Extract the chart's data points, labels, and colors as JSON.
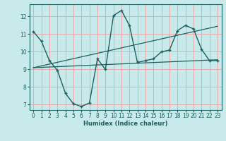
{
  "bg_color": "#c8eaea",
  "grid_color": "#e8a0a0",
  "line_color": "#1a6060",
  "xlabel": "Humidex (Indice chaleur)",
  "xlim": [
    -0.5,
    23.5
  ],
  "ylim": [
    6.7,
    12.7
  ],
  "yticks": [
    7,
    8,
    9,
    10,
    11,
    12
  ],
  "xticks": [
    0,
    1,
    2,
    3,
    4,
    5,
    6,
    7,
    8,
    9,
    10,
    11,
    12,
    13,
    14,
    15,
    16,
    17,
    18,
    19,
    20,
    21,
    22,
    23
  ],
  "curve1_x": [
    0,
    1,
    2,
    3,
    4,
    5,
    6,
    7,
    8,
    9,
    10,
    11,
    12,
    13,
    14,
    15,
    16,
    17,
    18,
    19,
    20,
    21,
    22,
    23
  ],
  "curve1_y": [
    11.15,
    10.6,
    9.5,
    8.95,
    7.65,
    7.05,
    6.9,
    7.1,
    9.6,
    9.0,
    12.05,
    12.35,
    11.5,
    9.4,
    9.5,
    9.6,
    10.0,
    10.1,
    11.2,
    11.5,
    11.3,
    10.15,
    9.5,
    9.5
  ],
  "line2_x": [
    0,
    23
  ],
  "line2_y": [
    9.1,
    9.55
  ],
  "line3_x": [
    0,
    23
  ],
  "line3_y": [
    9.1,
    11.45
  ]
}
